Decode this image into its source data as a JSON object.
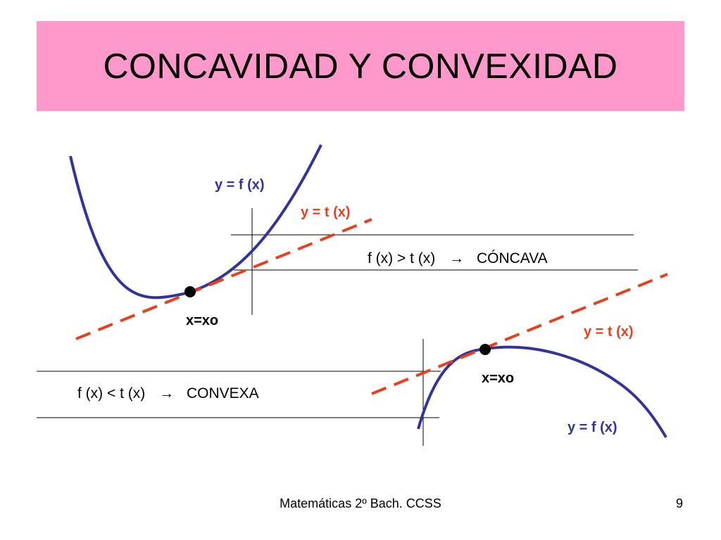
{
  "title": "CONCAVIDAD Y CONVEXIDAD",
  "colors": {
    "title_bg": "#ff99cc",
    "function_curve": "#333399",
    "tangent_line": "#e8401f",
    "curve_label": "#333399",
    "tangent_label": "#e8401f"
  },
  "concave": {
    "function_label": "y = f (x)",
    "tangent_label": "y = t (x)",
    "point_label": "x=xo",
    "condition_lhs": "f (x) > t (x)",
    "arrow": "→",
    "condition_result": "CÓNCAVA"
  },
  "convex": {
    "function_label": "y = f (x)",
    "tangent_label": "y = t (x)",
    "point_label": "x=xo",
    "condition_lhs": "f (x) < t (x)",
    "arrow": "→",
    "condition_result": "CONVEXA"
  },
  "footer": {
    "text": "Matemáticas 2º Bach. CCSS",
    "page_number": "9"
  }
}
